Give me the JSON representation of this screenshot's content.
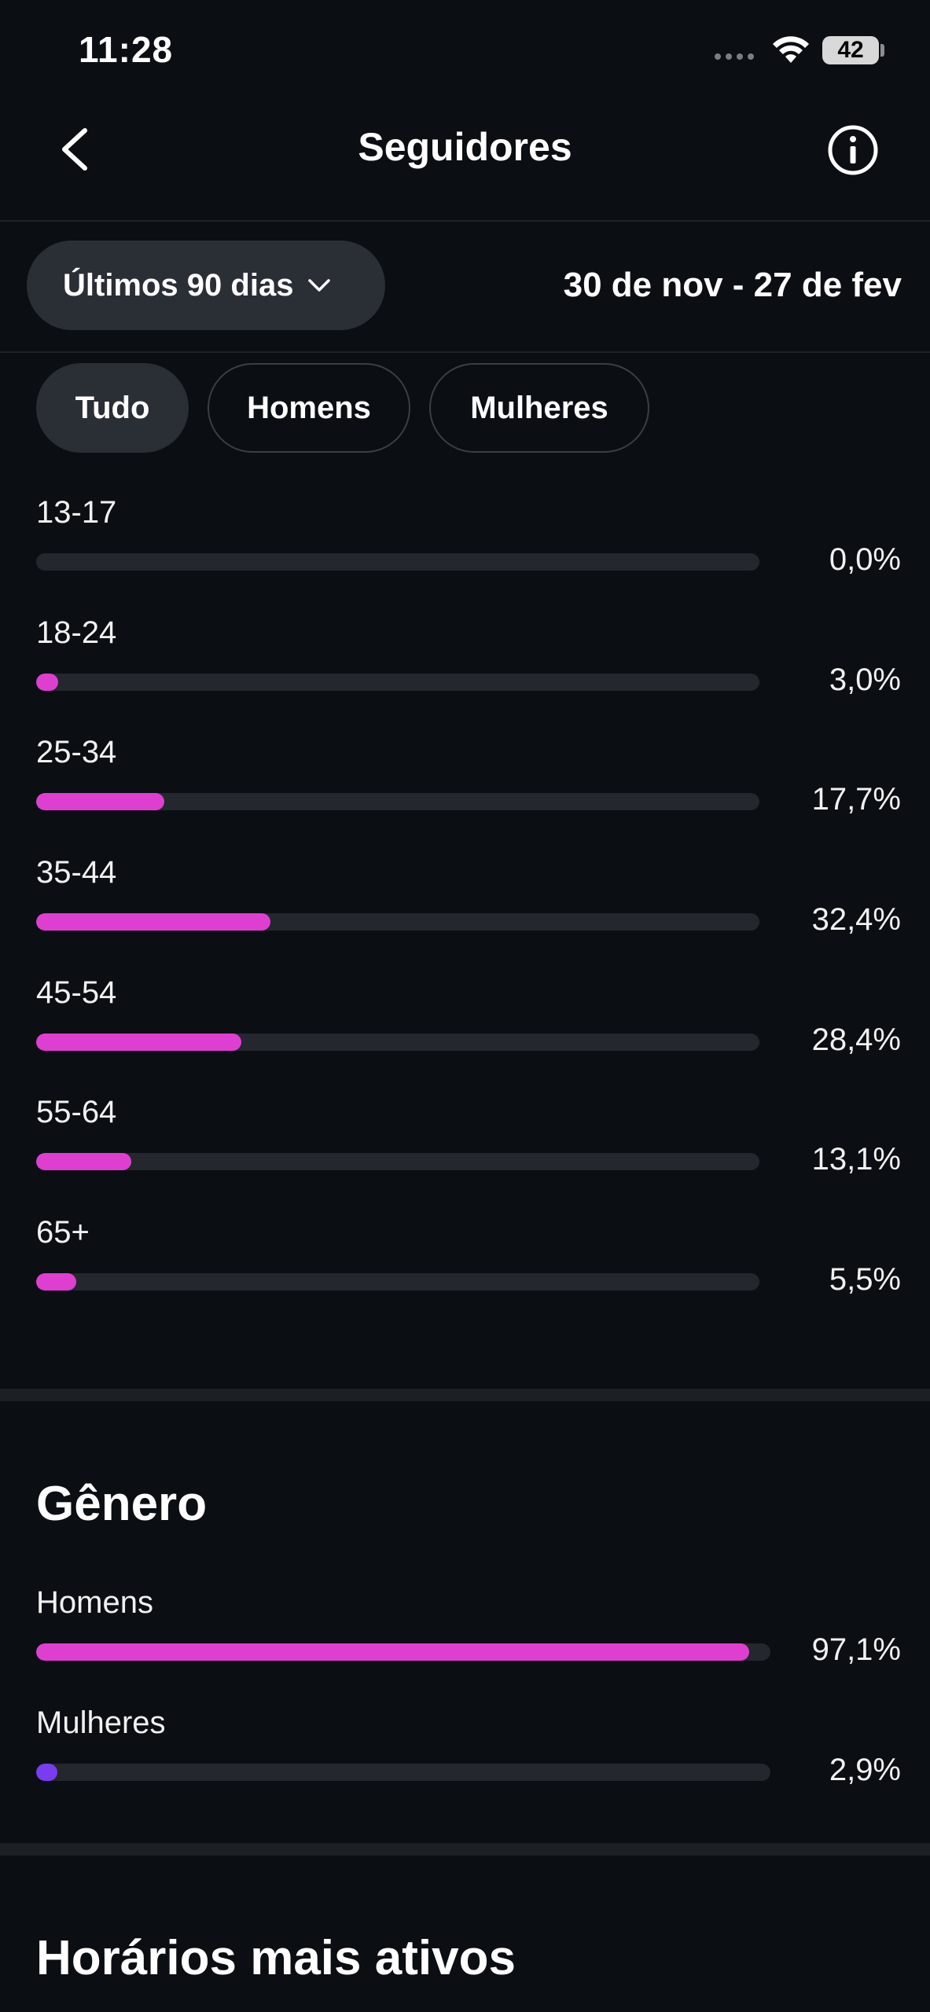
{
  "status": {
    "time": "11:28",
    "battery": "42"
  },
  "header": {
    "title": "Seguidores"
  },
  "filter": {
    "range_label": "Últimos 90 dias",
    "date_range": "30 de nov - 27 de fev"
  },
  "segments": [
    {
      "label": "Tudo",
      "active": true
    },
    {
      "label": "Homens",
      "active": false
    },
    {
      "label": "Mulheres",
      "active": false
    }
  ],
  "age": {
    "items": [
      {
        "label": "13-17",
        "pct": "0,0%",
        "value": 0.0
      },
      {
        "label": "18-24",
        "pct": "3,0%",
        "value": 3.0
      },
      {
        "label": "25-34",
        "pct": "17,7%",
        "value": 17.7
      },
      {
        "label": "35-44",
        "pct": "32,4%",
        "value": 32.4
      },
      {
        "label": "45-54",
        "pct": "28,4%",
        "value": 28.4
      },
      {
        "label": "55-64",
        "pct": "13,1%",
        "value": 13.1
      },
      {
        "label": "65+",
        "pct": "5,5%",
        "value": 5.5
      }
    ],
    "scale_max": 100,
    "bar_color": "#df3fd1"
  },
  "gender": {
    "title": "Gênero",
    "items": [
      {
        "label": "Homens",
        "pct": "97,1%",
        "value": 97.1,
        "color": "#df3fd1"
      },
      {
        "label": "Mulheres",
        "pct": "2,9%",
        "value": 2.9,
        "color": "#7a3cf0"
      }
    ]
  },
  "active_hours": {
    "title": "Horários mais ativos"
  },
  "colors": {
    "background": "#0b0e13",
    "track": "#24272d",
    "pill": "#2a2e35"
  }
}
